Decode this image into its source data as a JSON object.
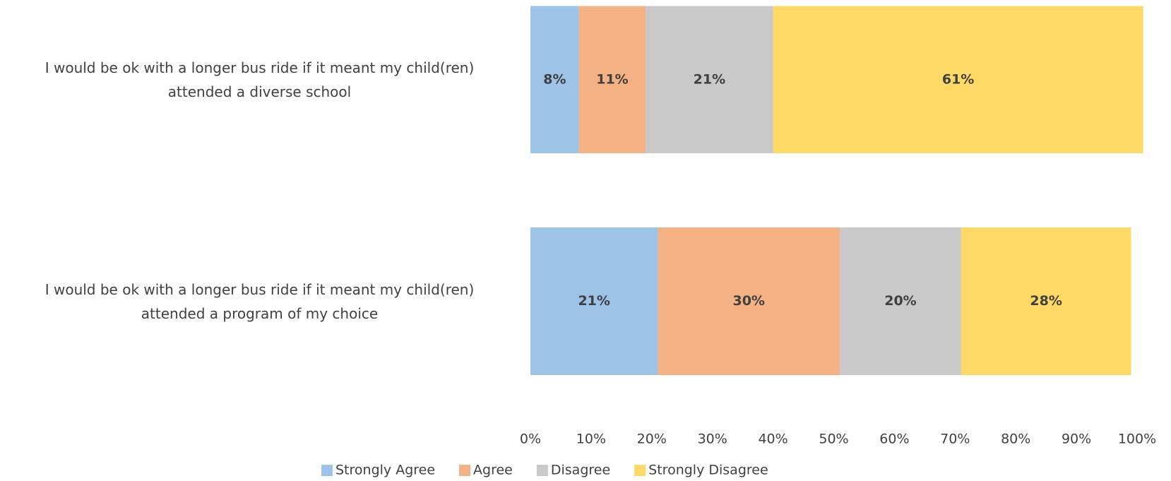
{
  "chart_data": {
    "type": "stacked-bar",
    "orientation": "horizontal",
    "categories": [
      "I would be ok with a longer bus ride if it meant my child(ren)\nattended a diverse school",
      "I would be ok with a longer bus ride if it meant my child(ren)\nattended a program of my choice"
    ],
    "series": [
      {
        "name": "Strongly Agree",
        "color": "#9dc3e6",
        "values": [
          8,
          21
        ],
        "value_labels": [
          "8%",
          "21%"
        ]
      },
      {
        "name": "Agree",
        "color": "#f4b183",
        "values": [
          11,
          30
        ],
        "value_labels": [
          "11%",
          "30%"
        ]
      },
      {
        "name": "Disagree",
        "color": "#c9c9c9",
        "values": [
          21,
          20
        ],
        "value_labels": [
          "21%",
          "20%"
        ]
      },
      {
        "name": "Strongly Disagree",
        "color": "#ffd966",
        "values": [
          61,
          28
        ],
        "value_labels": [
          "61%",
          "28%"
        ]
      }
    ],
    "xlim": [
      0,
      100
    ],
    "xticks": [
      {
        "value": 0,
        "label": "0%"
      },
      {
        "value": 10,
        "label": "10%"
      },
      {
        "value": 20,
        "label": "20%"
      },
      {
        "value": 30,
        "label": "30%"
      },
      {
        "value": 40,
        "label": "40%"
      },
      {
        "value": 50,
        "label": "50%"
      },
      {
        "value": 60,
        "label": "60%"
      },
      {
        "value": 70,
        "label": "70%"
      },
      {
        "value": 80,
        "label": "80%"
      },
      {
        "value": 90,
        "label": "90%"
      },
      {
        "value": 100,
        "label": "100%"
      }
    ],
    "legend": "bottom"
  }
}
